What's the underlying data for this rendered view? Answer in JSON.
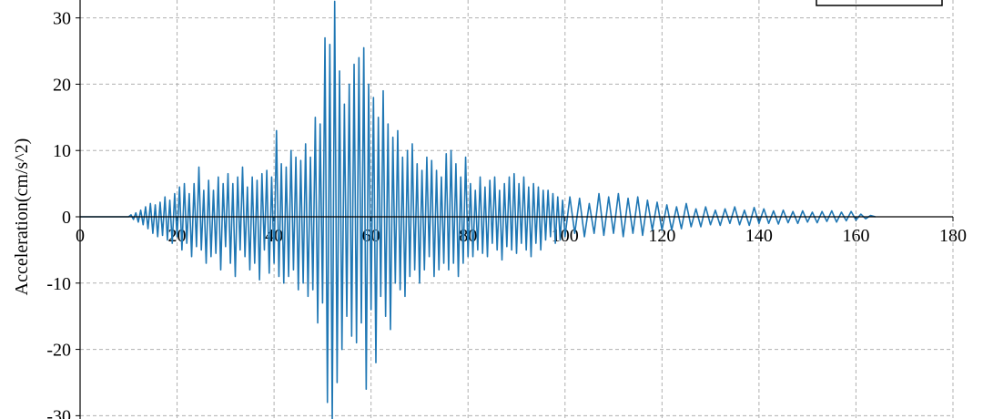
{
  "chart_data": {
    "type": "line",
    "y_label": "Acceleration(cm/s^2)",
    "xlim": [
      0,
      180
    ],
    "xticks": [
      0,
      20,
      40,
      60,
      80,
      100,
      120,
      140,
      160,
      180
    ],
    "ylim": [
      -30.5,
      32.7
    ],
    "yticks": [
      -30,
      -20,
      -10,
      0,
      10,
      20,
      30
    ],
    "grid": true,
    "x": [
      0,
      10,
      10.5,
      11,
      11.5,
      12,
      12.5,
      13,
      13.5,
      14,
      14.5,
      15,
      15.5,
      16,
      16.5,
      17,
      17.5,
      18,
      18.5,
      19,
      19.5,
      20,
      20.5,
      21,
      21.5,
      22,
      22.5,
      23,
      23.5,
      24,
      24.5,
      25,
      25.5,
      26,
      26.5,
      27,
      27.5,
      28,
      28.5,
      29,
      29.5,
      30,
      30.5,
      31,
      31.5,
      32,
      32.5,
      33,
      33.5,
      34,
      34.5,
      35,
      35.5,
      36,
      36.5,
      37,
      37.5,
      38,
      38.5,
      39,
      39.5,
      40,
      40.5,
      41,
      41.5,
      42,
      42.5,
      43,
      43.5,
      44,
      44.5,
      45,
      45.5,
      46,
      46.5,
      47,
      47.5,
      48,
      48.5,
      49,
      49.5,
      50,
      50.5,
      51,
      51.5,
      52,
      52.5,
      53,
      53.5,
      54,
      54.5,
      55,
      55.5,
      56,
      56.5,
      57,
      57.5,
      58,
      58.5,
      59,
      59.5,
      60,
      60.5,
      61,
      61.5,
      62,
      62.5,
      63,
      63.5,
      64,
      64.5,
      65,
      65.5,
      66,
      66.5,
      67,
      67.5,
      68,
      68.5,
      69,
      69.5,
      70,
      70.5,
      71,
      71.5,
      72,
      72.5,
      73,
      73.5,
      74,
      74.5,
      75,
      75.5,
      76,
      76.5,
      77,
      77.5,
      78,
      78.5,
      79,
      79.5,
      80,
      80.5,
      81,
      81.5,
      82,
      82.5,
      83,
      83.5,
      84,
      84.5,
      85,
      85.5,
      86,
      86.5,
      87,
      87.5,
      88,
      88.5,
      89,
      89.5,
      90,
      90.5,
      91,
      91.5,
      92,
      92.5,
      93,
      93.5,
      94,
      94.5,
      95,
      95.5,
      96,
      96.5,
      97,
      97.5,
      98,
      98.5,
      99,
      99.5,
      100,
      101,
      102,
      103,
      104,
      105,
      106,
      107,
      108,
      109,
      110,
      111,
      112,
      113,
      114,
      115,
      116,
      117,
      118,
      119,
      120,
      121,
      122,
      123,
      124,
      125,
      126,
      127,
      128,
      129,
      130,
      131,
      132,
      133,
      134,
      135,
      136,
      137,
      138,
      139,
      140,
      141,
      142,
      143,
      144,
      145,
      146,
      147,
      148,
      149,
      150,
      151,
      152,
      153,
      154,
      155,
      156,
      157,
      158,
      159,
      160,
      161,
      162,
      163,
      164
    ],
    "series": [
      {
        "color": "#1f77b4",
        "values": [
          0,
          0,
          0.3,
          -0.4,
          0.6,
          -0.8,
          1,
          -1.2,
          1.5,
          -1.8,
          2,
          -2.5,
          1.8,
          -3,
          2.2,
          -2.8,
          3,
          -3.5,
          2.5,
          -4,
          3.5,
          -3,
          4.5,
          -5,
          5,
          -4,
          3.5,
          -6,
          5,
          -4.5,
          7.5,
          -5,
          4,
          -7,
          5.5,
          -6,
          4,
          -5.5,
          6,
          -8,
          5,
          -4.5,
          6.5,
          -7,
          5,
          -9,
          6,
          -5,
          7.5,
          -6,
          4.5,
          -8,
          6,
          -7,
          5.5,
          -9.5,
          6.5,
          -5,
          7,
          -8.5,
          6,
          -7,
          13,
          -9,
          8,
          -10,
          7.5,
          -9,
          10,
          -8,
          9,
          -11,
          8.5,
          -10,
          11,
          -12,
          9,
          -11,
          15,
          -16,
          14,
          -13,
          27,
          -28,
          26,
          -31,
          32.5,
          -25,
          22,
          -20,
          17,
          -15,
          20,
          -18,
          23,
          -19,
          24,
          -16,
          25.5,
          -26,
          20,
          -14,
          18,
          -22,
          15,
          -12,
          19,
          -15,
          14,
          -17,
          12,
          -10,
          13,
          -11,
          9,
          -12,
          10,
          -9,
          11,
          -8,
          8,
          -10,
          7,
          -8,
          9,
          -6,
          8.5,
          -9,
          7,
          -8,
          6,
          -7,
          9.5,
          -8,
          10,
          -7,
          8,
          -9,
          6,
          -7,
          9,
          -6,
          5,
          -6,
          4,
          -5,
          6,
          -5.5,
          4.5,
          -6,
          5.5,
          -4,
          6,
          -5,
          4,
          -6.5,
          5,
          -4.5,
          6,
          -5,
          6.5,
          -5.5,
          5,
          -4,
          6,
          -5,
          4.5,
          -6,
          5,
          -4,
          4.5,
          -5,
          4,
          -3.5,
          4,
          -3,
          3.5,
          -4,
          3,
          -3.5,
          2.5,
          -3,
          3,
          -2.5,
          2.8,
          -3,
          2,
          -2.5,
          3.5,
          -2.8,
          3,
          -2.5,
          3.5,
          -3,
          2.8,
          -2.5,
          3,
          -2.8,
          2.5,
          -2,
          2.2,
          -2,
          1.8,
          -2,
          1.5,
          -1.8,
          2,
          -1.5,
          1.2,
          -1.5,
          1.5,
          -1.2,
          1,
          -1.3,
          1.2,
          -1,
          1.5,
          -1.2,
          1,
          -1.3,
          1.4,
          -1,
          1.2,
          -1,
          0.9,
          -1.1,
          1,
          -0.9,
          0.8,
          -1,
          0.9,
          -0.8,
          0.7,
          -0.9,
          0.8,
          -0.7,
          0.9,
          -0.8,
          0.7,
          -0.6,
          0.8,
          -0.5,
          0.4,
          -0.3,
          0.2,
          0
        ]
      }
    ]
  }
}
